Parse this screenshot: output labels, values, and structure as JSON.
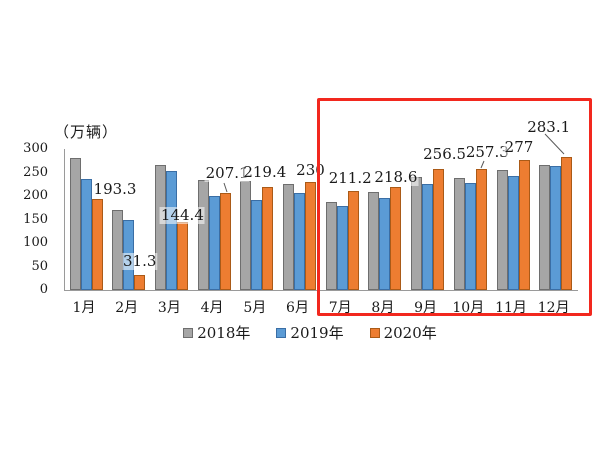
{
  "chart_data": {
    "type": "bar",
    "title": "",
    "unit_label": "（万辆）",
    "categories": [
      "1月",
      "2月",
      "3月",
      "4月",
      "5月",
      "6月",
      "7月",
      "8月",
      "9月",
      "10月",
      "11月",
      "12月"
    ],
    "series": [
      {
        "name": "2018年",
        "color": "#a6a6a6",
        "border_color": "#6e6e6e",
        "values": [
          281,
          170,
          266,
          233,
          231,
          226,
          188,
          209,
          240,
          238,
          255,
          265
        ]
      },
      {
        "name": "2019年",
        "color": "#5b9bd5",
        "border_color": "#3a6ea5",
        "values": [
          236,
          148,
          253,
          199,
          192,
          206,
          179,
          195,
          225,
          227,
          243,
          264
        ]
      },
      {
        "name": "2020年",
        "color": "#ed7d31",
        "border_color": "#aa5a17",
        "values": [
          193.3,
          31.3,
          144.4,
          207.1,
          219.4,
          230,
          211.2,
          218.6,
          256.5,
          257.3,
          277,
          283.1
        ]
      }
    ],
    "data_labels": [
      "193.3",
      "31.3",
      "144.4",
      "207.1",
      "219.4",
      "230",
      "211.2",
      "218.6",
      "256.5",
      "257.3",
      "277",
      "283.1"
    ],
    "labeled_series": "2020年",
    "yticks": [
      0,
      50,
      100,
      150,
      200,
      250,
      300
    ],
    "ylim": [
      0,
      300
    ],
    "grid": false,
    "legend_position": "bottom",
    "highlight": {
      "months": [
        "7月",
        "8月",
        "9月",
        "10月",
        "11月",
        "12月"
      ],
      "color": "#f2281e"
    }
  }
}
